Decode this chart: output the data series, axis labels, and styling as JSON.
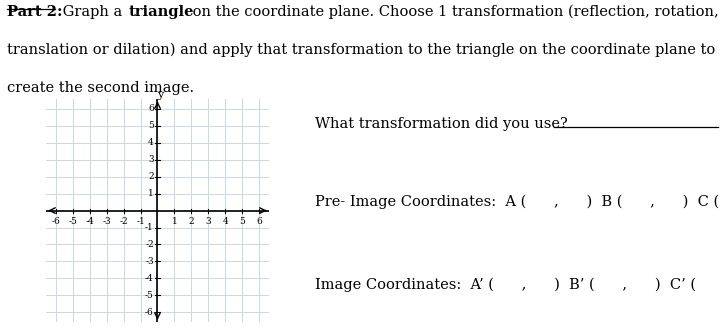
{
  "grid_color": "#c8d8e8",
  "grid_bg": "#dce8f0",
  "axis_range": [
    -6,
    6
  ],
  "tick_fontsize": 6.5,
  "background_color": "#ffffff",
  "line1_part1": "Part 2:",
  "line1_part2": " Graph a ",
  "line1_part3": "triangle",
  "line1_part4": " on the coordinate plane. Choose 1 transformation (reflection, rotation,",
  "line2": "translation or dilation) and apply that transformation to the triangle on the coordinate plane to",
  "line3": "create the second image.",
  "transformation_q": "What transformation did you use?",
  "pre_image_text": "Pre- Image Coordinates:  A (      ,      )  B (      ,      )  C (      ,      )",
  "image_text": "Image Coordinates:  A’ (      ,      )  B’ (      ,      )  C’ (      ,      )",
  "body_fontsize": 10.5
}
